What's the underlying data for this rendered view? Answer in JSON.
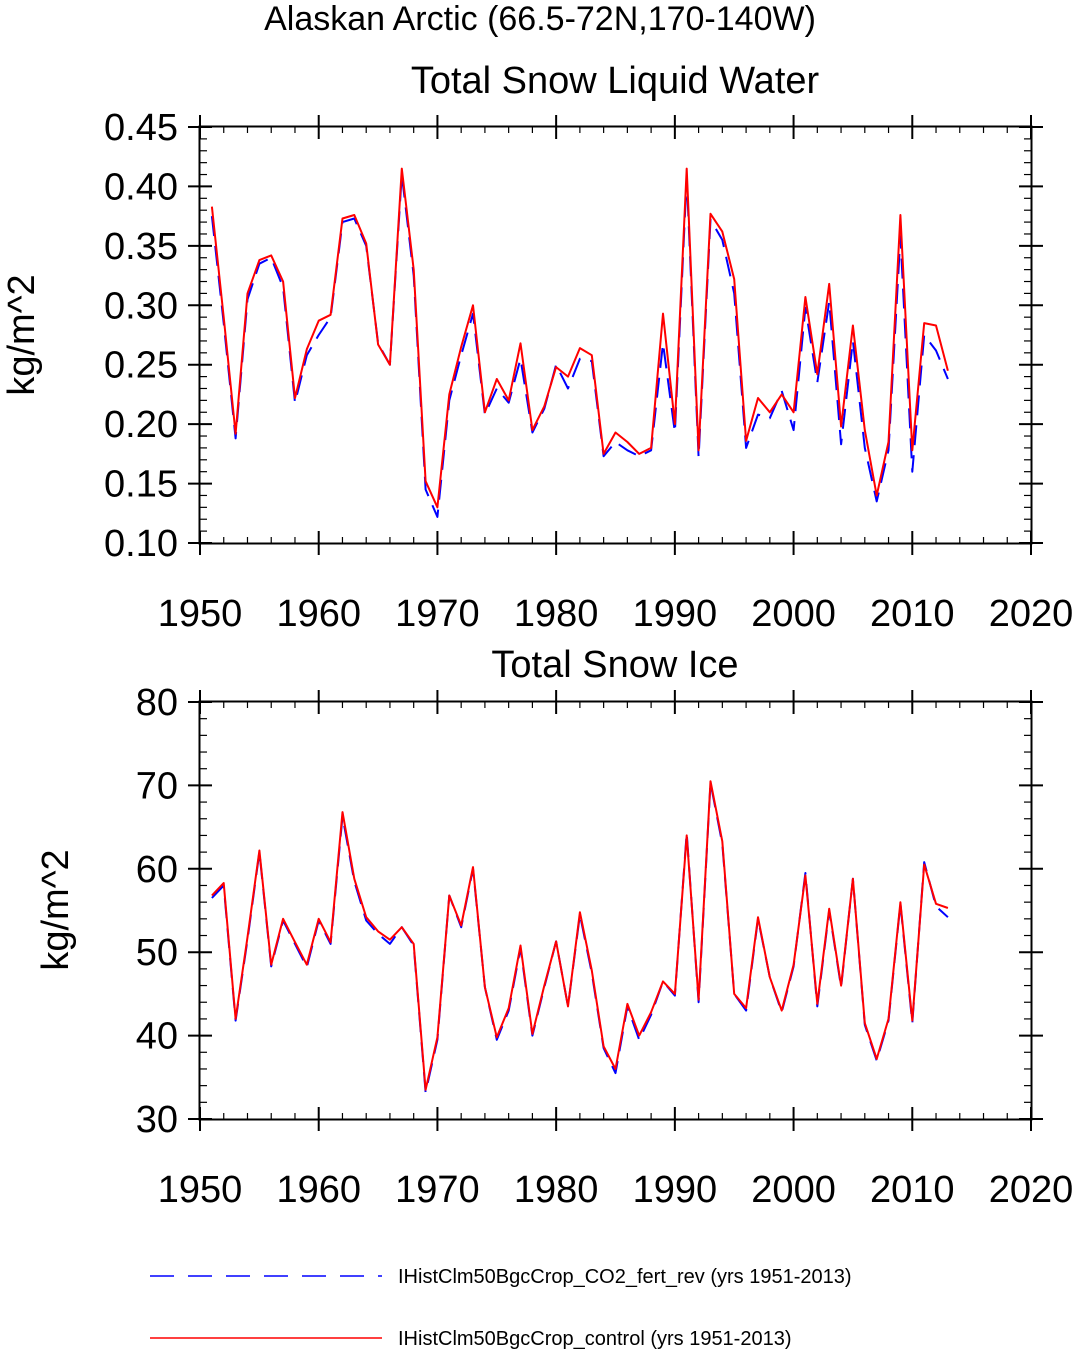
{
  "figure": {
    "suptitle": "Alaskan Arctic (66.5-72N,170-140W)"
  },
  "chart_data": [
    {
      "type": "line",
      "title": "Total Snow Liquid Water",
      "ylabel": "kg/m^2",
      "xlim": [
        1950,
        2020
      ],
      "ylim": [
        0.1,
        0.45
      ],
      "xticks": [
        1950,
        1960,
        1970,
        1980,
        1990,
        2000,
        2010,
        2020
      ],
      "xtick_labels": [
        "1950",
        "1960",
        "1970",
        "1980",
        "1990",
        "2000",
        "2010",
        "2020"
      ],
      "yticks": [
        0.1,
        0.15,
        0.2,
        0.25,
        0.3,
        0.35,
        0.4,
        0.45
      ],
      "ytick_labels": [
        "0.10",
        "0.15",
        "0.20",
        "0.25",
        "0.30",
        "0.35",
        "0.40",
        "0.45"
      ],
      "x": [
        1951,
        1952,
        1953,
        1954,
        1955,
        1956,
        1957,
        1958,
        1959,
        1960,
        1961,
        1962,
        1963,
        1964,
        1965,
        1966,
        1967,
        1968,
        1969,
        1970,
        1971,
        1972,
        1973,
        1974,
        1975,
        1976,
        1977,
        1978,
        1979,
        1980,
        1981,
        1982,
        1983,
        1984,
        1985,
        1986,
        1987,
        1988,
        1989,
        1990,
        1991,
        1992,
        1993,
        1994,
        1995,
        1996,
        1997,
        1998,
        1999,
        2000,
        2001,
        2002,
        2003,
        2004,
        2005,
        2006,
        2007,
        2008,
        2009,
        2010,
        2011,
        2012,
        2013
      ],
      "series": [
        {
          "name": "IHistClm50BgcCrop_CO2_fert_rev (yrs 1951-2013)",
          "color": "#0000ff",
          "dash": "dashed",
          "values": [
            0.375,
            0.285,
            0.188,
            0.305,
            0.335,
            0.34,
            0.315,
            0.218,
            0.258,
            0.275,
            0.29,
            0.37,
            0.373,
            0.35,
            0.268,
            0.25,
            0.41,
            0.325,
            0.145,
            0.122,
            0.22,
            0.258,
            0.293,
            0.208,
            0.23,
            0.218,
            0.255,
            0.193,
            0.213,
            0.25,
            0.23,
            0.255,
            0.253,
            0.173,
            0.185,
            0.178,
            0.173,
            0.178,
            0.268,
            0.193,
            0.408,
            0.172,
            0.372,
            0.355,
            0.31,
            0.18,
            0.208,
            0.205,
            0.228,
            0.195,
            0.298,
            0.235,
            0.303,
            0.183,
            0.27,
            0.18,
            0.135,
            0.178,
            0.358,
            0.16,
            0.275,
            0.262,
            0.238
          ]
        },
        {
          "name": "IHistClm50BgcCrop_control (yrs 1951-2013)",
          "color": "#ff0000",
          "dash": "solid",
          "values": [
            0.383,
            0.29,
            0.192,
            0.31,
            0.338,
            0.342,
            0.32,
            0.222,
            0.263,
            0.287,
            0.292,
            0.373,
            0.376,
            0.352,
            0.267,
            0.25,
            0.415,
            0.33,
            0.152,
            0.13,
            0.225,
            0.265,
            0.3,
            0.21,
            0.238,
            0.22,
            0.268,
            0.195,
            0.215,
            0.248,
            0.24,
            0.264,
            0.258,
            0.175,
            0.193,
            0.185,
            0.175,
            0.18,
            0.293,
            0.2,
            0.415,
            0.178,
            0.377,
            0.362,
            0.322,
            0.186,
            0.222,
            0.21,
            0.225,
            0.21,
            0.307,
            0.242,
            0.318,
            0.198,
            0.283,
            0.195,
            0.14,
            0.185,
            0.376,
            0.178,
            0.285,
            0.283,
            0.245
          ]
        }
      ]
    },
    {
      "type": "line",
      "title": "Total Snow Ice",
      "ylabel": "kg/m^2",
      "xlim": [
        1950,
        2020
      ],
      "ylim": [
        30,
        80
      ],
      "xticks": [
        1950,
        1960,
        1970,
        1980,
        1990,
        2000,
        2010,
        2020
      ],
      "xtick_labels": [
        "1950",
        "1960",
        "1970",
        "1980",
        "1990",
        "2000",
        "2010",
        "2020"
      ],
      "yticks": [
        30,
        40,
        50,
        60,
        70,
        80
      ],
      "ytick_labels": [
        "30",
        "40",
        "50",
        "60",
        "70",
        "80"
      ],
      "x": [
        1951,
        1952,
        1953,
        1954,
        1955,
        1956,
        1957,
        1958,
        1959,
        1960,
        1961,
        1962,
        1963,
        1964,
        1965,
        1966,
        1967,
        1968,
        1969,
        1970,
        1971,
        1972,
        1973,
        1974,
        1975,
        1976,
        1977,
        1978,
        1979,
        1980,
        1981,
        1982,
        1983,
        1984,
        1985,
        1986,
        1987,
        1988,
        1989,
        1990,
        1991,
        1992,
        1993,
        1994,
        1995,
        1996,
        1997,
        1998,
        1999,
        2000,
        2001,
        2002,
        2003,
        2004,
        2005,
        2006,
        2007,
        2008,
        2009,
        2010,
        2011,
        2012,
        2013
      ],
      "series": [
        {
          "name": "IHistClm50BgcCrop_CO2_fert_rev (yrs 1951-2013)",
          "color": "#0000ff",
          "dash": "dashed",
          "values": [
            56.5,
            58.0,
            41.8,
            51.5,
            62.0,
            48.3,
            53.8,
            51.0,
            48.2,
            53.8,
            51.0,
            66.3,
            58.5,
            53.8,
            52.2,
            51.0,
            53.0,
            50.8,
            33.2,
            39.5,
            56.8,
            53.0,
            60.0,
            45.8,
            39.5,
            43.0,
            50.5,
            40.0,
            45.8,
            51.3,
            43.5,
            54.5,
            47.5,
            38.5,
            35.5,
            43.5,
            39.5,
            42.5,
            46.5,
            44.8,
            64.3,
            44.0,
            70.3,
            63.0,
            45.0,
            43.0,
            54.0,
            47.0,
            42.8,
            48.3,
            59.5,
            43.5,
            55.0,
            45.8,
            58.8,
            41.3,
            37.0,
            41.8,
            55.8,
            41.5,
            60.8,
            55.5,
            54.2
          ]
        },
        {
          "name": "IHistClm50BgcCrop_control (yrs 1951-2013)",
          "color": "#ff0000",
          "dash": "solid",
          "values": [
            56.8,
            58.3,
            42.0,
            51.8,
            62.2,
            48.5,
            54.0,
            51.2,
            48.5,
            54.0,
            51.2,
            66.8,
            58.8,
            54.2,
            52.5,
            51.5,
            53.0,
            51.0,
            33.5,
            39.8,
            56.8,
            53.2,
            60.2,
            45.8,
            39.8,
            43.3,
            50.8,
            40.2,
            46.0,
            51.3,
            43.5,
            54.8,
            47.8,
            38.7,
            36.0,
            43.8,
            40.0,
            42.8,
            46.5,
            45.0,
            64.0,
            44.3,
            70.5,
            63.3,
            45.0,
            43.3,
            54.2,
            47.0,
            43.0,
            48.5,
            59.2,
            43.8,
            55.2,
            46.0,
            58.8,
            41.5,
            37.2,
            42.0,
            56.0,
            41.8,
            60.5,
            55.8,
            55.3
          ]
        }
      ]
    }
  ],
  "legend": [
    {
      "label": "IHistClm50BgcCrop_CO2_fert_rev (yrs 1951-2013)",
      "color": "#0000ff",
      "dash": "dashed"
    },
    {
      "label": "IHistClm50BgcCrop_control (yrs 1951-2013)",
      "color": "#ff0000",
      "dash": "solid"
    }
  ]
}
